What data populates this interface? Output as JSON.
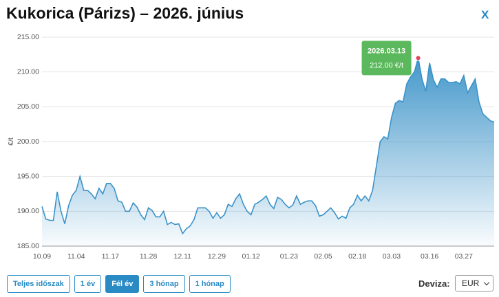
{
  "chart_data": {
    "type": "area",
    "title": "Kukorica (Párizs) – 2026. június",
    "y_label": "€/t",
    "categories": [
      "10.09",
      null,
      null,
      null,
      null,
      null,
      null,
      null,
      null,
      "11.04",
      null,
      null,
      null,
      null,
      null,
      null,
      null,
      null,
      "11.17",
      null,
      null,
      null,
      null,
      null,
      null,
      null,
      null,
      null,
      "11.28",
      null,
      null,
      null,
      null,
      null,
      null,
      null,
      null,
      "12.11",
      null,
      null,
      null,
      null,
      null,
      null,
      null,
      null,
      "12.29",
      null,
      null,
      null,
      null,
      null,
      null,
      null,
      null,
      "01.12",
      null,
      null,
      null,
      null,
      null,
      null,
      null,
      null,
      null,
      "01.23",
      null,
      null,
      null,
      null,
      null,
      null,
      null,
      null,
      "02.05",
      null,
      null,
      null,
      null,
      null,
      null,
      null,
      null,
      "02.18",
      null,
      null,
      null,
      null,
      null,
      null,
      null,
      null,
      "03.03",
      null,
      null,
      null,
      null,
      null,
      null,
      null,
      null,
      null,
      "03.16",
      null,
      null,
      null,
      null,
      null,
      null,
      null,
      null,
      "03.27",
      null,
      null,
      null,
      null,
      null,
      null,
      null,
      null
    ],
    "series": [
      {
        "name": "Kukorica (Párizs)",
        "color": "#3a92c8",
        "values": [
          190.7,
          188.9,
          188.7,
          188.7,
          192.8,
          190,
          188.2,
          190.8,
          192.3,
          193,
          195,
          193,
          193,
          192.5,
          191.8,
          193.3,
          192.5,
          194,
          194,
          193.3,
          191.5,
          191.3,
          190,
          190,
          191.2,
          190.6,
          189.5,
          188.8,
          190.5,
          190.1,
          189.2,
          189.2,
          190,
          188.1,
          188.4,
          188.1,
          188.2,
          186.8,
          187.5,
          187.9,
          188.8,
          190.5,
          190.5,
          190.5,
          190,
          189,
          189.8,
          189,
          189.5,
          191,
          190.7,
          191.8,
          192.5,
          191,
          190,
          189.5,
          191,
          191.3,
          191.7,
          192.2,
          191,
          190.4,
          192,
          191.7,
          191,
          190.5,
          190.9,
          192.2,
          191,
          191.3,
          191.5,
          191.5,
          190.8,
          189.3,
          189.5,
          190,
          190.5,
          189.8,
          188.9,
          189.3,
          189,
          190.5,
          191,
          192.3,
          191.5,
          192.2,
          191.5,
          193,
          196.5,
          200,
          200.7,
          200.4,
          203.5,
          205.5,
          205.9,
          205.7,
          208.3,
          209.3,
          210,
          212,
          209,
          207.2,
          211.3,
          208.9,
          207.8,
          209,
          209,
          208.5,
          208.5,
          208.6,
          208.3,
          209.5,
          207,
          208,
          209,
          205.7,
          204,
          203.5,
          203,
          202.8
        ]
      }
    ],
    "ylim": [
      185,
      215
    ],
    "yticks": [
      {
        "value": 185,
        "label": "185.00"
      },
      {
        "value": 190,
        "label": "190.00"
      },
      {
        "value": 195,
        "label": "195.00"
      },
      {
        "value": 200,
        "label": "200.00"
      },
      {
        "value": 205,
        "label": "205.00"
      },
      {
        "value": 210,
        "label": "210.00"
      },
      {
        "value": 215,
        "label": "215.00"
      }
    ],
    "grid": true,
    "tooltip": {
      "date": "2026.03.13",
      "text": "212.00 €/t",
      "color": "#5cb85c",
      "marker_color": "#e0435a"
    }
  },
  "ui": {
    "close": "X",
    "buttons": [
      "Teljes időszak",
      "1 év",
      "Fél év",
      "3 hónap",
      "1 hónap"
    ],
    "active_button": "Fél év",
    "currency_label": "Deviza:",
    "currency": "EUR"
  }
}
